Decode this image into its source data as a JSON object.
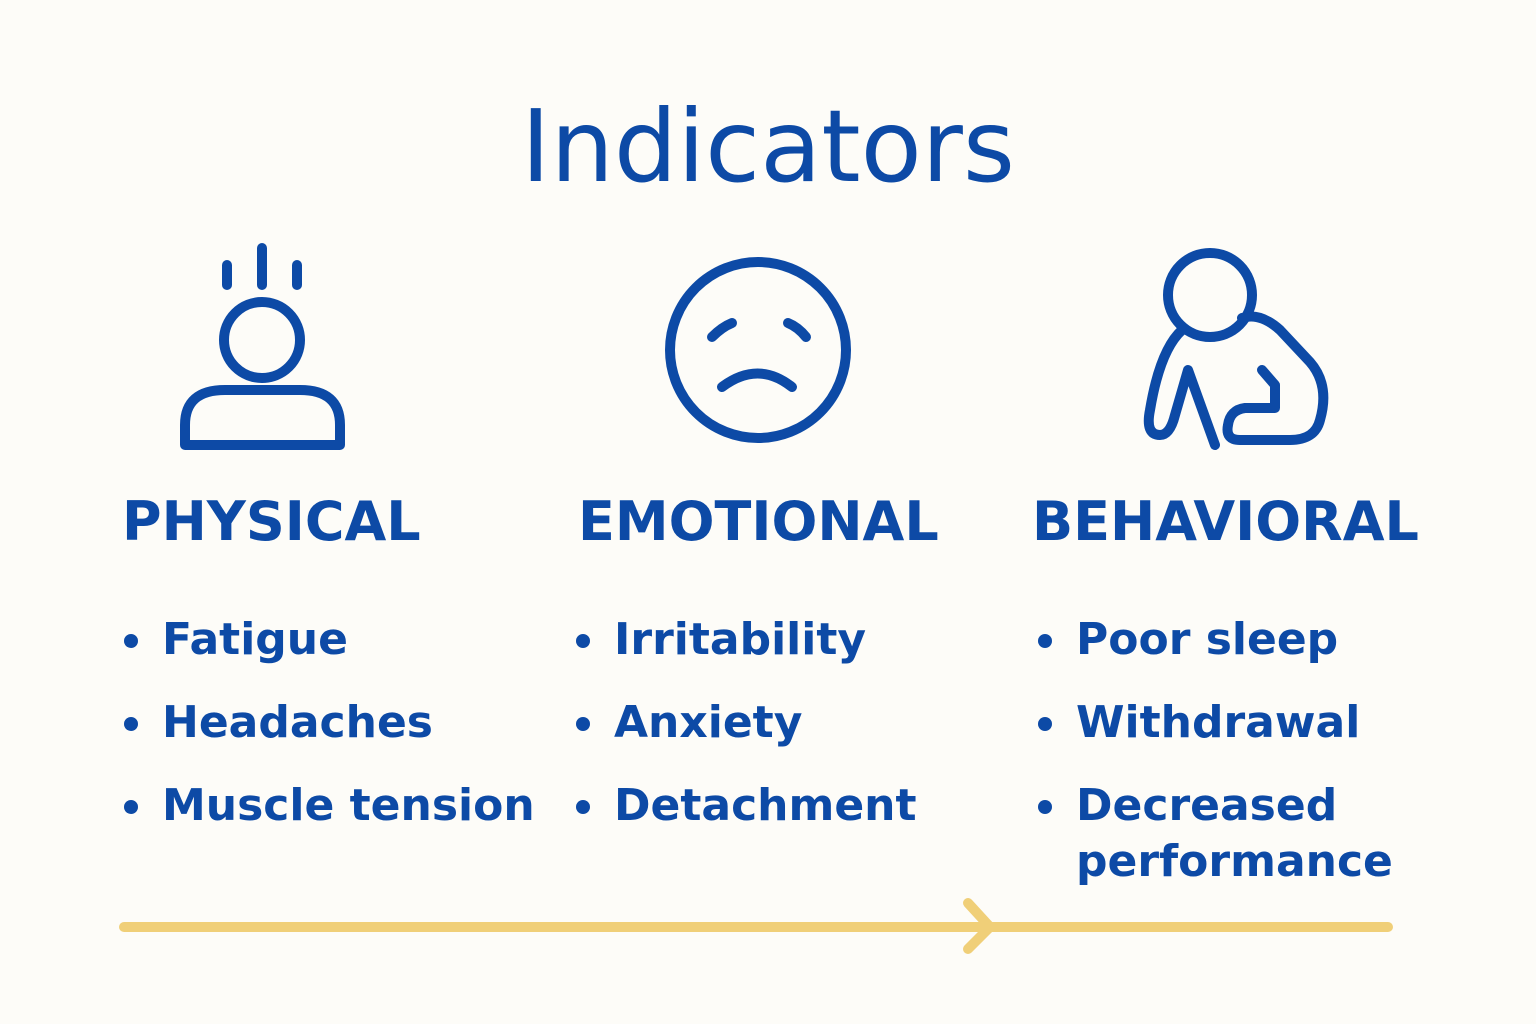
{
  "title": "Indicators",
  "columns": [
    {
      "heading": "PHYSICAL",
      "items": [
        "Fatigue",
        "Headaches",
        "Muscle tension"
      ]
    },
    {
      "heading": "EMOTIONAL",
      "items": [
        "Irritability",
        "Anxiety",
        "Detachment"
      ]
    },
    {
      "heading": "BEHAVIORAL",
      "items": [
        "Poor sleep",
        "Withdrawal",
        "Decreased performance"
      ]
    }
  ]
}
